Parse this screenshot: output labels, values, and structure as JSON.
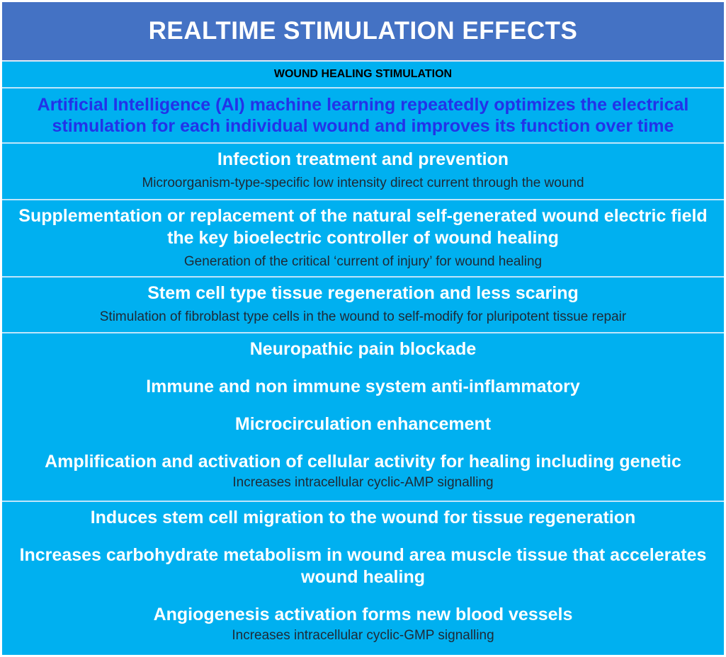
{
  "title": "REALTIME STIMULATION EFFECTS",
  "subtitle": "WOUND HEALING STIMULATION",
  "ai_statement": "Artificial Intelligence (AI) machine learning repeatedly optimizes the electrical stimulation for each individual wound and improves its function over time",
  "rows": [
    {
      "effects": [
        "Infection treatment and prevention"
      ],
      "mechanism": "Microorganism-type-specific low intensity direct current through the wound"
    },
    {
      "effects": [
        "Supplementation or replacement of the natural self-generated wound electric field the key bioelectric controller of wound healing"
      ],
      "mechanism": "Generation of the critical ‘current of injury’ for wound healing"
    },
    {
      "effects": [
        "Stem cell type tissue regeneration and less scaring"
      ],
      "mechanism": "Stimulation of fibroblast type cells in the wound to self-modify for pluripotent tissue repair"
    },
    {
      "effects": [
        "Neuropathic pain blockade",
        "Immune and non immune system anti-inflammatory",
        "Microcirculation enhancement",
        "Amplification and activation of cellular activity for healing including genetic"
      ],
      "mechanism": "Increases intracellular cyclic-AMP signalling"
    },
    {
      "effects": [
        "Induces stem cell migration to the wound for tissue regeneration",
        "Increases carbohydrate metabolism in wound area muscle tissue that accelerates wound healing",
        "Angiogenesis activation forms new blood vessels"
      ],
      "mechanism": "Increases intracellular cyclic-GMP signalling"
    }
  ],
  "colors": {
    "header_bg": "#4472c4",
    "body_bg": "#00b0f0",
    "ai_text": "#2233e8",
    "effect_text": "#ffffff",
    "mechanism_text": "#1e2a36"
  }
}
